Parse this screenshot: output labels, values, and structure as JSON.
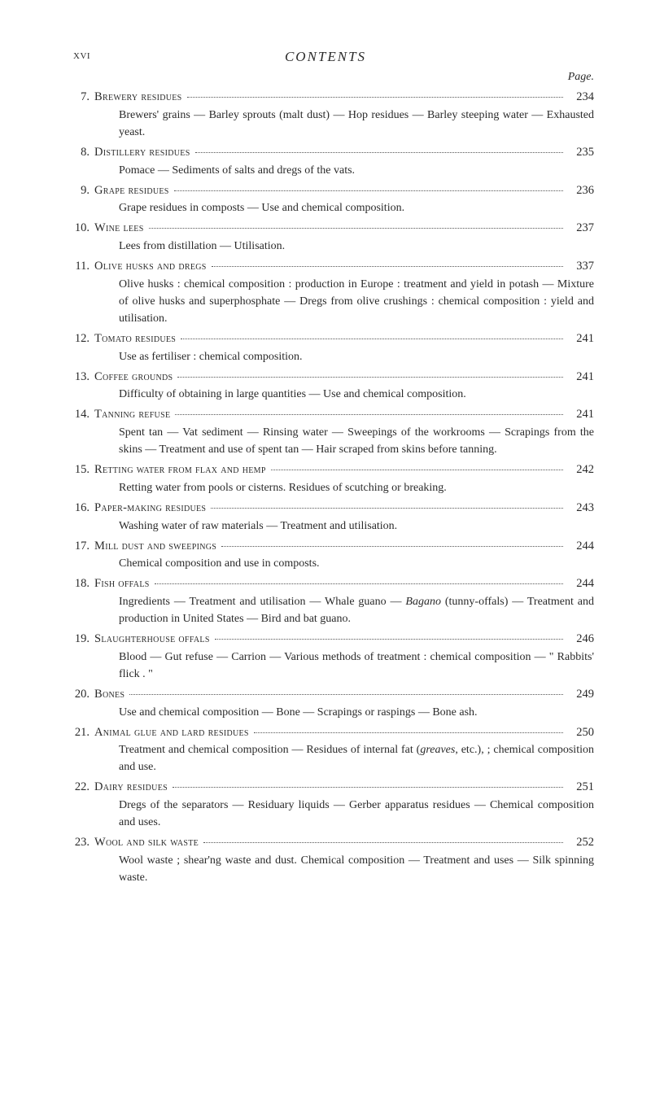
{
  "header": {
    "pageLeft": "xvi",
    "title": "CONTENTS",
    "pageLabel": "Page."
  },
  "entries": [
    {
      "num": "7.",
      "title": "Brewery residues",
      "page": "234",
      "desc": "Brewers' grains — Barley sprouts (malt dust) — Hop residues — Barley steeping water — Exhausted yeast."
    },
    {
      "num": "8.",
      "title": "Distillery residues",
      "page": "235",
      "desc": "Pomace — Sediments of salts and dregs of the vats."
    },
    {
      "num": "9.",
      "title": "Grape residues",
      "page": "236",
      "desc": "Grape residues in composts — Use and chemical composition."
    },
    {
      "num": "10.",
      "title": "Wine lees",
      "page": "237",
      "desc": "Lees from distillation — Utilisation."
    },
    {
      "num": "11.",
      "title": "Olive husks and dregs",
      "page": "337",
      "desc": "Olive husks : chemical composition : production in Europe : treatment and yield in potash — Mixture of olive husks and superphosphate — Dregs from olive crushings : chemical composition : yield and utilisation."
    },
    {
      "num": "12.",
      "title": "Tomato residues",
      "page": "241",
      "desc": "Use as fertiliser : chemical composition."
    },
    {
      "num": "13.",
      "title": "Coffee grounds",
      "page": "241",
      "desc": "Difficulty of obtaining in large quantities — Use and chemical composition."
    },
    {
      "num": "14.",
      "title": "Tanning refuse",
      "page": "241",
      "desc": "Spent tan — Vat sediment — Rinsing water — Sweepings of the workrooms — Scrapings from the skins — Treatment and use of spent tan — Hair scraped from skins before tanning."
    },
    {
      "num": "15.",
      "title": "Retting water from flax and hemp",
      "page": "242",
      "desc": "Retting water from pools or cisterns. Residues of scutching or breaking."
    },
    {
      "num": "16.",
      "title": "Paper-making residues",
      "page": "243",
      "desc": "Washing water of raw materials — Treatment and utilisation."
    },
    {
      "num": "17.",
      "title": "Mill dust and sweepings",
      "page": "244",
      "desc": "Chemical composition and use in composts."
    },
    {
      "num": "18.",
      "title": "Fish offals",
      "page": "244",
      "desc": "Ingredients — Treatment and utilisation — Whale guano — Bagano (tunny-offals) — Treatment and production in United States — Bird and bat guano.",
      "italicWords": [
        "Bagano"
      ]
    },
    {
      "num": "19.",
      "title": "Slaughterhouse offals",
      "page": "246",
      "desc": "Blood — Gut refuse — Carrion — Various methods of treatment : chemical composition — \" Rabbits' flick . \""
    },
    {
      "num": "20.",
      "title": "Bones",
      "page": "249",
      "desc": "Use and chemical composition — Bone — Scrapings or raspings — Bone ash."
    },
    {
      "num": "21.",
      "title": "Animal glue and lard residues",
      "page": "250",
      "desc": "Treatment and chemical composition — Residues of internal fat (greaves, etc.), ; chemical composition and use.",
      "italicWords": [
        "greaves"
      ]
    },
    {
      "num": "22.",
      "title": "Dairy residues",
      "page": "251",
      "desc": "Dregs of the separators — Residuary liquids — Gerber apparatus residues — Chemical composition and uses."
    },
    {
      "num": "23.",
      "title": "Wool and silk waste",
      "page": "252",
      "desc": "Wool waste ; shear'ng waste and dust. Chemical composition — Treatment and uses — Silk spinning waste."
    }
  ],
  "styling": {
    "backgroundColor": "#ffffff",
    "textColor": "#2a2a2a",
    "fontFamily": "Georgia, Times New Roman, serif",
    "bodyFontSize": 14.5,
    "descFontSize": 14,
    "titleFontSize": 17,
    "lineHeight": 1.5,
    "pageWidth": 800,
    "pageHeight": 1369
  }
}
